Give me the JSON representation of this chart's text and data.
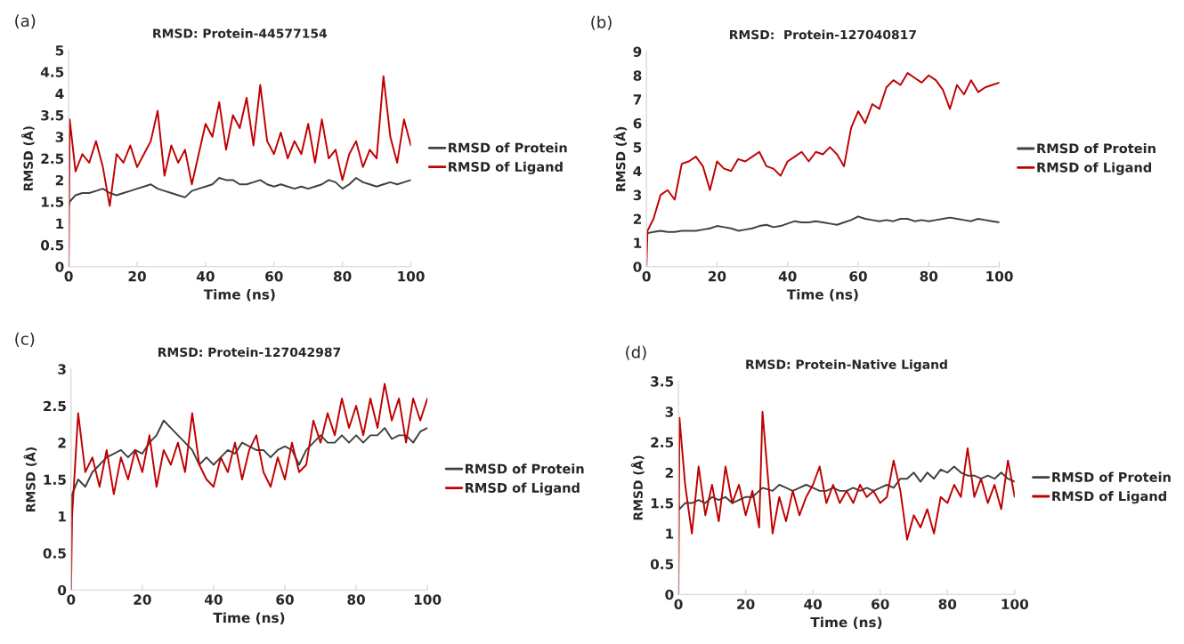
{
  "chart_data": [
    {
      "type": "line",
      "title": "RMSD: Protein-44577154",
      "xlabel": "Time (ns)",
      "ylabel": "RMSD (Å)",
      "annotations": [
        "(a)"
      ],
      "legend": "right",
      "grid": false,
      "xlim": [
        0,
        100
      ],
      "xticks": [
        0,
        20,
        40,
        60,
        80,
        100
      ],
      "ylim": [
        0,
        5
      ],
      "yticks": [
        0,
        0.5,
        1,
        1.5,
        2,
        2.5,
        3,
        3.5,
        4,
        4.5,
        5
      ],
      "x": [
        0,
        0.3,
        2,
        4,
        6,
        8,
        10,
        12,
        14,
        16,
        18,
        20,
        22,
        24,
        26,
        28,
        30,
        32,
        34,
        36,
        38,
        40,
        42,
        44,
        46,
        48,
        50,
        52,
        54,
        56,
        58,
        60,
        62,
        64,
        66,
        68,
        70,
        72,
        74,
        76,
        78,
        80,
        82,
        84,
        86,
        88,
        90,
        92,
        94,
        96,
        98,
        100
      ],
      "series": [
        {
          "name": "RMSD of Protein",
          "color": "#404040",
          "values": [
            1.4,
            1.5,
            1.65,
            1.7,
            1.7,
            1.75,
            1.8,
            1.7,
            1.65,
            1.7,
            1.75,
            1.8,
            1.85,
            1.9,
            1.8,
            1.75,
            1.7,
            1.65,
            1.6,
            1.75,
            1.8,
            1.85,
            1.9,
            2.05,
            2.0,
            2.0,
            1.9,
            1.9,
            1.95,
            2.0,
            1.9,
            1.85,
            1.9,
            1.85,
            1.8,
            1.85,
            1.8,
            1.85,
            1.9,
            2.0,
            1.95,
            1.8,
            1.9,
            2.05,
            1.95,
            1.9,
            1.85,
            1.9,
            1.95,
            1.9,
            1.95,
            2.0
          ]
        },
        {
          "name": "RMSD of Ligand",
          "color": "#c00000",
          "values": [
            0,
            3.4,
            2.2,
            2.6,
            2.4,
            2.9,
            2.3,
            1.4,
            2.6,
            2.4,
            2.8,
            2.3,
            2.6,
            2.9,
            3.6,
            2.1,
            2.8,
            2.4,
            2.7,
            1.9,
            2.6,
            3.3,
            3.0,
            3.8,
            2.7,
            3.5,
            3.2,
            3.9,
            2.8,
            4.2,
            2.9,
            2.6,
            3.1,
            2.5,
            2.9,
            2.6,
            3.3,
            2.4,
            3.4,
            2.5,
            2.7,
            2.0,
            2.6,
            2.9,
            2.3,
            2.7,
            2.5,
            4.4,
            3.0,
            2.4,
            3.4,
            2.8
          ]
        }
      ]
    },
    {
      "type": "line",
      "title": "RMSD:  Protein-127040817",
      "xlabel": "Time (ns)",
      "ylabel": "RMSD (Å)",
      "annotations": [
        "(b)"
      ],
      "legend": "right",
      "grid": false,
      "xlim": [
        0,
        100
      ],
      "xticks": [
        0,
        20,
        40,
        60,
        80,
        100
      ],
      "ylim": [
        0,
        9
      ],
      "yticks": [
        0,
        1,
        2,
        3,
        4,
        5,
        6,
        7,
        8,
        9
      ],
      "x": [
        0,
        0.3,
        2,
        4,
        6,
        8,
        10,
        12,
        14,
        16,
        18,
        20,
        22,
        24,
        26,
        28,
        30,
        32,
        34,
        36,
        38,
        40,
        42,
        44,
        46,
        48,
        50,
        52,
        54,
        56,
        58,
        60,
        62,
        64,
        66,
        68,
        70,
        72,
        74,
        76,
        78,
        80,
        82,
        84,
        86,
        88,
        90,
        92,
        94,
        96,
        98,
        100
      ],
      "series": [
        {
          "name": "RMSD of Protein",
          "color": "#404040",
          "values": [
            1.3,
            1.4,
            1.45,
            1.5,
            1.45,
            1.45,
            1.5,
            1.5,
            1.5,
            1.55,
            1.6,
            1.7,
            1.65,
            1.6,
            1.5,
            1.55,
            1.6,
            1.7,
            1.75,
            1.65,
            1.7,
            1.8,
            1.9,
            1.85,
            1.85,
            1.9,
            1.85,
            1.8,
            1.75,
            1.85,
            1.95,
            2.1,
            2.0,
            1.95,
            1.9,
            1.95,
            1.9,
            2.0,
            2.0,
            1.9,
            1.95,
            1.9,
            1.95,
            2.0,
            2.05,
            2.0,
            1.95,
            1.9,
            2.0,
            1.95,
            1.9,
            1.85
          ]
        },
        {
          "name": "RMSD of Ligand",
          "color": "#c00000",
          "values": [
            0,
            1.5,
            2.0,
            3.0,
            3.2,
            2.8,
            4.3,
            4.4,
            4.6,
            4.2,
            3.2,
            4.4,
            4.1,
            4.0,
            4.5,
            4.4,
            4.6,
            4.8,
            4.2,
            4.1,
            3.8,
            4.4,
            4.6,
            4.8,
            4.4,
            4.8,
            4.7,
            5.0,
            4.7,
            4.2,
            5.8,
            6.5,
            6.0,
            6.8,
            6.6,
            7.5,
            7.8,
            7.6,
            8.1,
            7.9,
            7.7,
            8.0,
            7.8,
            7.4,
            6.6,
            7.6,
            7.2,
            7.8,
            7.3,
            7.5,
            7.6,
            7.7
          ]
        }
      ]
    },
    {
      "type": "line",
      "title": "RMSD: Protein-127042987",
      "xlabel": "Time (ns)",
      "ylabel": "RMSD (Å)",
      "annotations": [
        "(c)"
      ],
      "legend": "right",
      "grid": false,
      "xlim": [
        0,
        100
      ],
      "xticks": [
        0,
        20,
        40,
        60,
        80,
        100
      ],
      "ylim": [
        0,
        3
      ],
      "yticks": [
        0,
        0.5,
        1,
        1.5,
        2,
        2.5,
        3
      ],
      "x": [
        0,
        0.3,
        2,
        4,
        6,
        8,
        10,
        12,
        14,
        16,
        18,
        20,
        22,
        24,
        26,
        28,
        30,
        32,
        34,
        36,
        38,
        40,
        42,
        44,
        46,
        48,
        50,
        52,
        54,
        56,
        58,
        60,
        62,
        64,
        66,
        68,
        70,
        72,
        74,
        76,
        78,
        80,
        82,
        84,
        86,
        88,
        90,
        92,
        94,
        96,
        98,
        100
      ],
      "series": [
        {
          "name": "RMSD of Protein",
          "color": "#404040",
          "values": [
            1.0,
            1.3,
            1.5,
            1.4,
            1.6,
            1.7,
            1.8,
            1.85,
            1.9,
            1.8,
            1.9,
            1.85,
            2.0,
            2.1,
            2.3,
            2.2,
            2.1,
            2.0,
            1.9,
            1.7,
            1.8,
            1.7,
            1.8,
            1.9,
            1.85,
            2.0,
            1.95,
            1.9,
            1.9,
            1.8,
            1.9,
            1.95,
            1.9,
            1.7,
            1.9,
            2.0,
            2.1,
            2.0,
            2.0,
            2.1,
            2.0,
            2.1,
            2.0,
            2.1,
            2.1,
            2.2,
            2.05,
            2.1,
            2.1,
            2.0,
            2.15,
            2.2
          ]
        },
        {
          "name": "RMSD of Ligand",
          "color": "#c00000",
          "values": [
            0,
            1.0,
            2.4,
            1.6,
            1.8,
            1.4,
            1.9,
            1.3,
            1.8,
            1.5,
            1.9,
            1.6,
            2.1,
            1.4,
            1.9,
            1.7,
            2.0,
            1.6,
            2.4,
            1.7,
            1.5,
            1.4,
            1.8,
            1.6,
            2.0,
            1.5,
            1.9,
            2.1,
            1.6,
            1.4,
            1.8,
            1.5,
            2.0,
            1.6,
            1.7,
            2.3,
            2.0,
            2.4,
            2.1,
            2.6,
            2.2,
            2.5,
            2.1,
            2.6,
            2.2,
            2.8,
            2.3,
            2.6,
            2.0,
            2.6,
            2.3,
            2.6
          ]
        }
      ]
    },
    {
      "type": "line",
      "title": "RMSD: Protein-Native Ligand",
      "xlabel": "Time (ns)",
      "ylabel": "RMSD (Å)",
      "annotations": [
        "(d)"
      ],
      "legend": "right",
      "grid": false,
      "xlim": [
        0,
        100
      ],
      "xticks": [
        0,
        20,
        40,
        60,
        80,
        100
      ],
      "ylim": [
        0,
        3.5
      ],
      "yticks": [
        0,
        0.5,
        1,
        1.5,
        2,
        2.5,
        3,
        3.5
      ],
      "x": [
        0,
        0.3,
        2,
        4,
        6,
        8,
        10,
        12,
        14,
        16,
        18,
        20,
        22,
        24,
        25,
        28,
        30,
        32,
        34,
        36,
        38,
        40,
        42,
        44,
        46,
        48,
        50,
        52,
        54,
        56,
        58,
        60,
        62,
        64,
        66,
        68,
        70,
        72,
        74,
        76,
        78,
        80,
        82,
        84,
        86,
        88,
        90,
        92,
        94,
        96,
        98,
        100
      ],
      "series": [
        {
          "name": "RMSD of Protein",
          "color": "#404040",
          "values": [
            1.5,
            1.4,
            1.5,
            1.5,
            1.55,
            1.5,
            1.6,
            1.55,
            1.6,
            1.5,
            1.55,
            1.6,
            1.6,
            1.7,
            1.75,
            1.7,
            1.8,
            1.75,
            1.7,
            1.75,
            1.8,
            1.75,
            1.7,
            1.7,
            1.75,
            1.7,
            1.7,
            1.75,
            1.7,
            1.75,
            1.7,
            1.75,
            1.8,
            1.75,
            1.9,
            1.9,
            2.0,
            1.85,
            2.0,
            1.9,
            2.05,
            2.0,
            2.1,
            2.0,
            1.95,
            1.95,
            1.9,
            1.95,
            1.9,
            2.0,
            1.9,
            1.85
          ]
        },
        {
          "name": "RMSD of Ligand",
          "color": "#c00000",
          "values": [
            0,
            2.9,
            1.8,
            1.0,
            2.1,
            1.3,
            1.8,
            1.2,
            2.1,
            1.5,
            1.8,
            1.3,
            1.7,
            1.1,
            3.0,
            1.0,
            1.6,
            1.2,
            1.7,
            1.3,
            1.6,
            1.8,
            2.1,
            1.5,
            1.8,
            1.5,
            1.7,
            1.5,
            1.8,
            1.6,
            1.7,
            1.5,
            1.6,
            2.2,
            1.7,
            0.9,
            1.3,
            1.1,
            1.4,
            1.0,
            1.6,
            1.5,
            1.8,
            1.6,
            2.4,
            1.6,
            1.9,
            1.5,
            1.8,
            1.4,
            2.2,
            1.6
          ]
        }
      ]
    }
  ]
}
